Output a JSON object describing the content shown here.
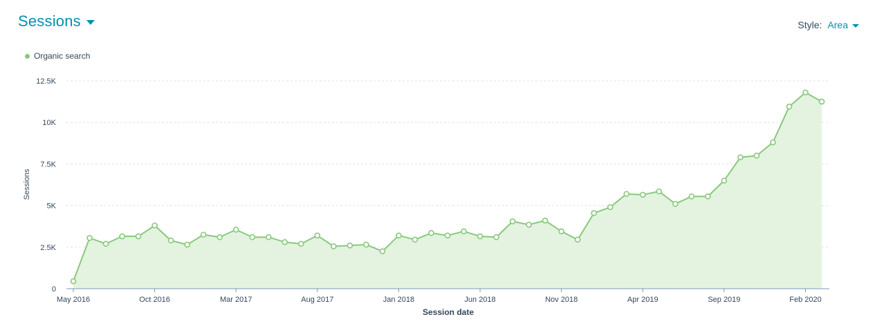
{
  "header": {
    "title": "Sessions"
  },
  "style_control": {
    "label": "Style:",
    "value": "Area"
  },
  "colors": {
    "accent": "#0091ae",
    "series_line": "#89c87c",
    "series_fill": "#e3f3e0",
    "grid": "#dfe3eb",
    "axis": "#7c98b6"
  },
  "chart_data": {
    "type": "area",
    "ylabel": "Sessions",
    "xlabel": "Session date",
    "ylim": [
      0,
      12500
    ],
    "yticks": [
      0,
      2500,
      5000,
      7500,
      10000,
      12500
    ],
    "ytick_labels": [
      "0",
      "2.5K",
      "5K",
      "7.5K",
      "10K",
      "12.5K"
    ],
    "x_tick_labels": [
      "May 2016",
      "Oct 2016",
      "Mar 2017",
      "Aug 2017",
      "Jan 2018",
      "Jun 2018",
      "Nov 2018",
      "Apr 2019",
      "Sep 2019",
      "Feb 2020"
    ],
    "x_tick_indices": [
      0,
      5,
      10,
      15,
      20,
      25,
      30,
      35,
      40,
      45
    ],
    "grid": true,
    "legend_position": "top-left",
    "x": [
      "May 2016",
      "Jun 2016",
      "Jul 2016",
      "Aug 2016",
      "Sep 2016",
      "Oct 2016",
      "Nov 2016",
      "Dec 2016",
      "Jan 2017",
      "Feb 2017",
      "Mar 2017",
      "Apr 2017",
      "May 2017",
      "Jun 2017",
      "Jul 2017",
      "Aug 2017",
      "Sep 2017",
      "Oct 2017",
      "Nov 2017",
      "Dec 2017",
      "Jan 2018",
      "Feb 2018",
      "Mar 2018",
      "Apr 2018",
      "May 2018",
      "Jun 2018",
      "Jul 2018",
      "Aug 2018",
      "Sep 2018",
      "Oct 2018",
      "Nov 2018",
      "Dec 2018",
      "Jan 2019",
      "Feb 2019",
      "Mar 2019",
      "Apr 2019",
      "May 2019",
      "Jun 2019",
      "Jul 2019",
      "Aug 2019",
      "Sep 2019",
      "Oct 2019",
      "Nov 2019",
      "Dec 2019",
      "Jan 2020",
      "Feb 2020",
      "Mar 2020"
    ],
    "series": [
      {
        "name": "Organic search",
        "values": [
          450,
          3050,
          2700,
          3150,
          3150,
          3800,
          2900,
          2650,
          3250,
          3100,
          3550,
          3100,
          3100,
          2800,
          2700,
          3200,
          2550,
          2600,
          2650,
          2250,
          3200,
          2950,
          3350,
          3200,
          3450,
          3150,
          3100,
          4050,
          3850,
          4100,
          3450,
          2950,
          4550,
          4900,
          5700,
          5650,
          5850,
          5100,
          5550,
          5550,
          6500,
          7900,
          8000,
          8800,
          10950,
          11800,
          11250
        ]
      }
    ]
  }
}
